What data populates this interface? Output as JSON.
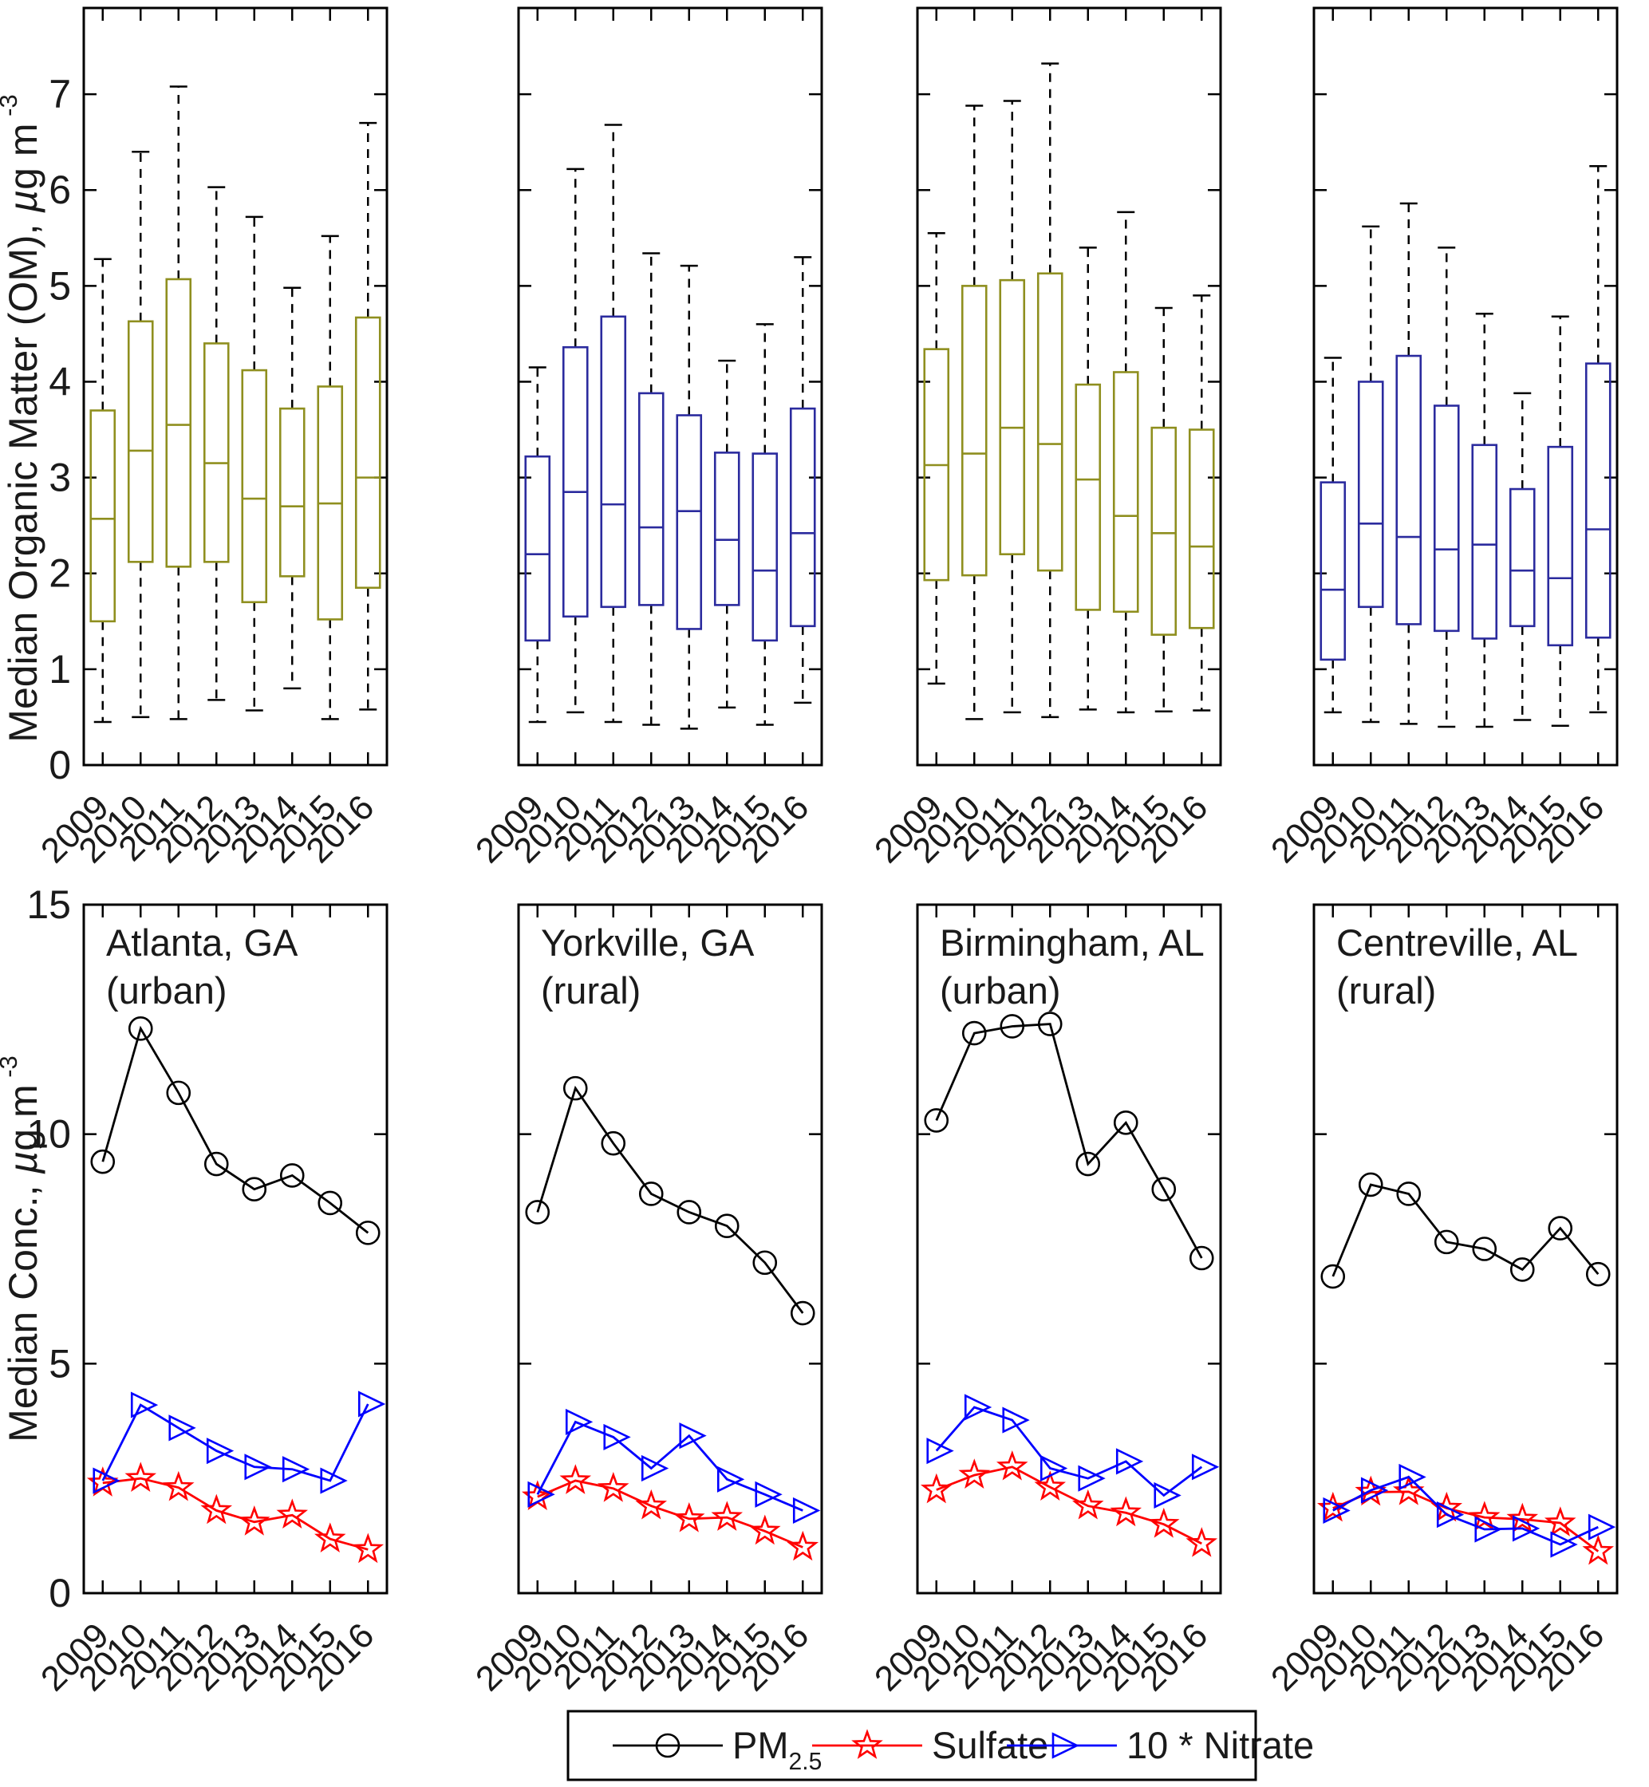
{
  "figure": {
    "years": [
      "2009",
      "2010",
      "2011",
      "2012",
      "2013",
      "2014",
      "2015",
      "2016"
    ],
    "top_row_ylabel": {
      "pre": "Median Organic Matter (OM), ",
      "mu": "µ",
      "rest": "g m",
      "sup": "-3"
    },
    "bottom_row_ylabel": {
      "pre": "Median Conc., ",
      "mu": "µ",
      "rest": "g m",
      "sup": "-3"
    },
    "colors": {
      "urban_box": "#8f8f1f",
      "rural_box": "#2b2b9e",
      "pm25": "#000000",
      "sulfate": "#ff0000",
      "nitrate": "#0000ff",
      "axis": "#000000"
    },
    "legend": {
      "entries": [
        {
          "label": "PM",
          "sub": "2.5",
          "marker": "circle-icon",
          "color": "#000000"
        },
        {
          "label": "Sulfate",
          "sub": "",
          "marker": "star-icon",
          "color": "#ff0000"
        },
        {
          "label": "10 * Nitrate",
          "sub": "",
          "marker": "triangle-right-icon",
          "color": "#0000ff"
        }
      ]
    }
  },
  "chart_data": [
    {
      "type": "box",
      "panel": "atlanta-om-boxplot",
      "box_color": "#8f8f1f",
      "categories": [
        "2009",
        "2010",
        "2011",
        "2012",
        "2013",
        "2014",
        "2015",
        "2016"
      ],
      "ylim": [
        0,
        7.9
      ],
      "yticks": [
        0,
        1,
        2,
        3,
        4,
        5,
        6,
        7
      ],
      "ytick_labels_shown": true,
      "boxes": [
        {
          "lo": 0.45,
          "q1": 1.5,
          "med": 2.57,
          "q3": 3.7,
          "hi": 5.28
        },
        {
          "lo": 0.5,
          "q1": 2.12,
          "med": 3.28,
          "q3": 4.63,
          "hi": 6.4
        },
        {
          "lo": 0.48,
          "q1": 2.07,
          "med": 3.55,
          "q3": 5.07,
          "hi": 7.08
        },
        {
          "lo": 0.68,
          "q1": 2.12,
          "med": 3.15,
          "q3": 4.4,
          "hi": 6.03
        },
        {
          "lo": 0.57,
          "q1": 1.7,
          "med": 2.78,
          "q3": 4.12,
          "hi": 5.72
        },
        {
          "lo": 0.8,
          "q1": 1.97,
          "med": 2.7,
          "q3": 3.72,
          "hi": 4.98
        },
        {
          "lo": 0.48,
          "q1": 1.52,
          "med": 2.73,
          "q3": 3.95,
          "hi": 5.52
        },
        {
          "lo": 0.58,
          "q1": 1.85,
          "med": 3.0,
          "q3": 4.67,
          "hi": 6.7
        }
      ]
    },
    {
      "type": "box",
      "panel": "yorkville-om-boxplot",
      "box_color": "#2b2b9e",
      "categories": [
        "2009",
        "2010",
        "2011",
        "2012",
        "2013",
        "2014",
        "2015",
        "2016"
      ],
      "ylim": [
        0,
        7.9
      ],
      "yticks": [
        0,
        1,
        2,
        3,
        4,
        5,
        6,
        7
      ],
      "ytick_labels_shown": false,
      "boxes": [
        {
          "lo": 0.45,
          "q1": 1.3,
          "med": 2.2,
          "q3": 3.22,
          "hi": 4.15
        },
        {
          "lo": 0.55,
          "q1": 1.55,
          "med": 2.85,
          "q3": 4.36,
          "hi": 6.22
        },
        {
          "lo": 0.45,
          "q1": 1.65,
          "med": 2.72,
          "q3": 4.68,
          "hi": 6.68
        },
        {
          "lo": 0.42,
          "q1": 1.67,
          "med": 2.48,
          "q3": 3.88,
          "hi": 5.34
        },
        {
          "lo": 0.38,
          "q1": 1.42,
          "med": 2.65,
          "q3": 3.65,
          "hi": 5.21
        },
        {
          "lo": 0.6,
          "q1": 1.67,
          "med": 2.35,
          "q3": 3.26,
          "hi": 4.22
        },
        {
          "lo": 0.42,
          "q1": 1.3,
          "med": 2.03,
          "q3": 3.25,
          "hi": 4.6
        },
        {
          "lo": 0.65,
          "q1": 1.45,
          "med": 2.42,
          "q3": 3.72,
          "hi": 5.3
        }
      ]
    },
    {
      "type": "box",
      "panel": "birmingham-om-boxplot",
      "box_color": "#8f8f1f",
      "categories": [
        "2009",
        "2010",
        "2011",
        "2012",
        "2013",
        "2014",
        "2015",
        "2016"
      ],
      "ylim": [
        0,
        7.9
      ],
      "yticks": [
        0,
        1,
        2,
        3,
        4,
        5,
        6,
        7
      ],
      "ytick_labels_shown": false,
      "boxes": [
        {
          "lo": 0.85,
          "q1": 1.93,
          "med": 3.13,
          "q3": 4.34,
          "hi": 5.55
        },
        {
          "lo": 0.48,
          "q1": 1.98,
          "med": 3.25,
          "q3": 5.0,
          "hi": 6.88
        },
        {
          "lo": 0.55,
          "q1": 2.2,
          "med": 3.52,
          "q3": 5.06,
          "hi": 6.93
        },
        {
          "lo": 0.5,
          "q1": 2.03,
          "med": 3.35,
          "q3": 5.13,
          "hi": 7.32
        },
        {
          "lo": 0.58,
          "q1": 1.62,
          "med": 2.98,
          "q3": 3.97,
          "hi": 5.4
        },
        {
          "lo": 0.55,
          "q1": 1.6,
          "med": 2.6,
          "q3": 4.1,
          "hi": 5.77
        },
        {
          "lo": 0.56,
          "q1": 1.36,
          "med": 2.42,
          "q3": 3.52,
          "hi": 4.77
        },
        {
          "lo": 0.57,
          "q1": 1.43,
          "med": 2.28,
          "q3": 3.5,
          "hi": 4.9
        }
      ]
    },
    {
      "type": "box",
      "panel": "centreville-om-boxplot",
      "box_color": "#2b2b9e",
      "categories": [
        "2009",
        "2010",
        "2011",
        "2012",
        "2013",
        "2014",
        "2015",
        "2016"
      ],
      "ylim": [
        0,
        7.9
      ],
      "yticks": [
        0,
        1,
        2,
        3,
        4,
        5,
        6,
        7
      ],
      "ytick_labels_shown": false,
      "boxes": [
        {
          "lo": 0.55,
          "q1": 1.1,
          "med": 1.83,
          "q3": 2.95,
          "hi": 4.25
        },
        {
          "lo": 0.45,
          "q1": 1.65,
          "med": 2.52,
          "q3": 4.0,
          "hi": 5.62
        },
        {
          "lo": 0.43,
          "q1": 1.47,
          "med": 2.38,
          "q3": 4.27,
          "hi": 5.86
        },
        {
          "lo": 0.4,
          "q1": 1.4,
          "med": 2.25,
          "q3": 3.75,
          "hi": 5.4
        },
        {
          "lo": 0.4,
          "q1": 1.32,
          "med": 2.3,
          "q3": 3.34,
          "hi": 4.71
        },
        {
          "lo": 0.47,
          "q1": 1.45,
          "med": 2.03,
          "q3": 2.88,
          "hi": 3.88
        },
        {
          "lo": 0.41,
          "q1": 1.25,
          "med": 1.95,
          "q3": 3.32,
          "hi": 4.68
        },
        {
          "lo": 0.55,
          "q1": 1.33,
          "med": 2.46,
          "q3": 4.19,
          "hi": 6.25
        }
      ]
    },
    {
      "type": "line",
      "panel": "atlanta-conc-lines",
      "site_line1": "Atlanta, GA",
      "site_line2": "(urban)",
      "categories": [
        "2009",
        "2010",
        "2011",
        "2012",
        "2013",
        "2014",
        "2015",
        "2016"
      ],
      "ylim": [
        0,
        15
      ],
      "yticks": [
        0,
        5,
        10,
        15
      ],
      "ytick_labels_shown": true,
      "series": [
        {
          "name": "PM2.5",
          "marker": "circle",
          "color": "#000000",
          "values": [
            9.4,
            12.3,
            10.9,
            9.35,
            8.8,
            9.1,
            8.5,
            7.85
          ]
        },
        {
          "name": "Sulfate",
          "marker": "star",
          "color": "#ff0000",
          "values": [
            2.4,
            2.5,
            2.3,
            1.8,
            1.55,
            1.7,
            1.18,
            0.95
          ]
        },
        {
          "name": "10 * Nitrate",
          "marker": "triangle-right",
          "color": "#0000ff",
          "values": [
            2.45,
            4.1,
            3.6,
            3.1,
            2.75,
            2.7,
            2.45,
            4.12
          ]
        }
      ]
    },
    {
      "type": "line",
      "panel": "yorkville-conc-lines",
      "site_line1": "Yorkville, GA",
      "site_line2": "(rural)",
      "categories": [
        "2009",
        "2010",
        "2011",
        "2012",
        "2013",
        "2014",
        "2015",
        "2016"
      ],
      "ylim": [
        0,
        15
      ],
      "yticks": [
        0,
        5,
        10,
        15
      ],
      "ytick_labels_shown": false,
      "series": [
        {
          "name": "PM2.5",
          "marker": "circle",
          "color": "#000000",
          "values": [
            8.3,
            11.0,
            9.8,
            8.7,
            8.3,
            8.0,
            7.2,
            6.1
          ]
        },
        {
          "name": "Sulfate",
          "marker": "star",
          "color": "#ff0000",
          "values": [
            2.1,
            2.45,
            2.28,
            1.9,
            1.62,
            1.65,
            1.35,
            1.0
          ]
        },
        {
          "name": "10 * Nitrate",
          "marker": "triangle-right",
          "color": "#0000ff",
          "values": [
            2.15,
            3.73,
            3.4,
            2.72,
            3.43,
            2.48,
            2.15,
            1.8
          ]
        }
      ]
    },
    {
      "type": "line",
      "panel": "birmingham-conc-lines",
      "site_line1": "Birmingham, AL",
      "site_line2": "(urban)",
      "categories": [
        "2009",
        "2010",
        "2011",
        "2012",
        "2013",
        "2014",
        "2015",
        "2016"
      ],
      "ylim": [
        0,
        15
      ],
      "yticks": [
        0,
        5,
        10,
        15
      ],
      "ytick_labels_shown": false,
      "series": [
        {
          "name": "PM2.5",
          "marker": "circle",
          "color": "#000000",
          "values": [
            10.3,
            12.2,
            12.35,
            12.4,
            9.35,
            10.25,
            8.8,
            7.3
          ]
        },
        {
          "name": "Sulfate",
          "marker": "star",
          "color": "#ff0000",
          "values": [
            2.25,
            2.57,
            2.75,
            2.31,
            1.9,
            1.75,
            1.5,
            1.08
          ]
        },
        {
          "name": "10 * Nitrate",
          "marker": "triangle-right",
          "color": "#0000ff",
          "values": [
            3.1,
            4.05,
            3.77,
            2.72,
            2.5,
            2.87,
            2.13,
            2.75
          ]
        }
      ]
    },
    {
      "type": "line",
      "panel": "centreville-conc-lines",
      "site_line1": "Centreville, AL",
      "site_line2": "(rural)",
      "categories": [
        "2009",
        "2010",
        "2011",
        "2012",
        "2013",
        "2014",
        "2015",
        "2016"
      ],
      "ylim": [
        0,
        15
      ],
      "yticks": [
        0,
        5,
        10,
        15
      ],
      "ytick_labels_shown": false,
      "series": [
        {
          "name": "PM2.5",
          "marker": "circle",
          "color": "#000000",
          "values": [
            6.9,
            8.9,
            8.7,
            7.65,
            7.5,
            7.05,
            7.95,
            6.95
          ]
        },
        {
          "name": "Sulfate",
          "marker": "star",
          "color": "#ff0000",
          "values": [
            1.85,
            2.2,
            2.21,
            1.85,
            1.65,
            1.61,
            1.53,
            0.91
          ]
        },
        {
          "name": "10 * Nitrate",
          "marker": "triangle-right",
          "color": "#0000ff",
          "values": [
            1.8,
            2.24,
            2.53,
            1.71,
            1.39,
            1.41,
            1.06,
            1.44
          ]
        }
      ]
    }
  ]
}
